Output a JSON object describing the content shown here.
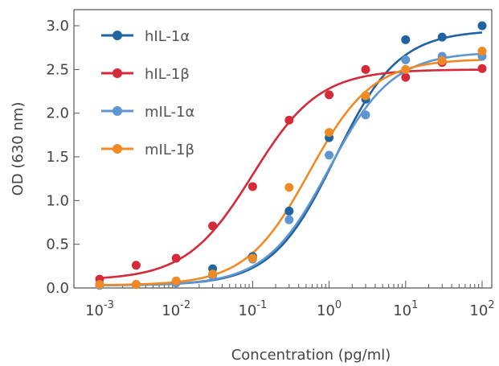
{
  "chart_data": {
    "type": "scatter",
    "title": "",
    "xlabel": "Concentration (pg/ml)",
    "ylabel": "OD (630 nm)",
    "x_scale": "log",
    "xlim": [
      0.001,
      100
    ],
    "ylim": [
      0,
      3.0
    ],
    "y_ticks": [
      "0.0",
      "0.5",
      "1.0",
      "1.5",
      "2.0",
      "2.5",
      "3.0"
    ],
    "x_ticks": [
      {
        "base": "10",
        "exp": "-3"
      },
      {
        "base": "10",
        "exp": "-2"
      },
      {
        "base": "10",
        "exp": "-1"
      },
      {
        "base": "10",
        "exp": "0"
      },
      {
        "base": "10",
        "exp": "1"
      },
      {
        "base": "10",
        "exp": "2"
      }
    ],
    "grid": false,
    "legend_position": "top-left",
    "x": [
      0.001,
      0.003,
      0.01,
      0.03,
      0.1,
      0.3,
      1,
      3,
      10,
      30,
      100
    ],
    "series": [
      {
        "name": "hIL-1α",
        "color": "#1f63a0",
        "values": [
          0.04,
          0.04,
          0.06,
          0.22,
          0.36,
          0.88,
          1.72,
          2.16,
          2.84,
          2.87,
          3.0
        ],
        "fit": {
          "bottom": 0.03,
          "top": 2.95,
          "ec50": 1.2,
          "hill": 1.05
        }
      },
      {
        "name": "hIL-1β",
        "color": "#d42a3a",
        "values": [
          0.1,
          0.26,
          0.34,
          0.71,
          1.16,
          1.92,
          2.21,
          2.5,
          2.41,
          2.58,
          2.51
        ],
        "fit": {
          "bottom": 0.09,
          "top": 2.5,
          "ec50": 0.1,
          "hill": 1.0
        }
      },
      {
        "name": "mIL-1α",
        "color": "#5f95d0",
        "values": [
          0.03,
          0.04,
          0.06,
          0.14,
          0.33,
          0.78,
          1.52,
          1.98,
          2.61,
          2.65,
          2.65
        ],
        "fit": {
          "bottom": 0.03,
          "top": 2.7,
          "ec50": 1.0,
          "hill": 1.05
        }
      },
      {
        "name": "mIL-1β",
        "color": "#f08a24",
        "values": [
          0.04,
          0.04,
          0.08,
          0.16,
          0.34,
          1.15,
          1.78,
          2.2,
          2.5,
          2.6,
          2.71
        ],
        "fit": {
          "bottom": 0.03,
          "top": 2.62,
          "ec50": 0.55,
          "hill": 1.05
        }
      }
    ]
  }
}
